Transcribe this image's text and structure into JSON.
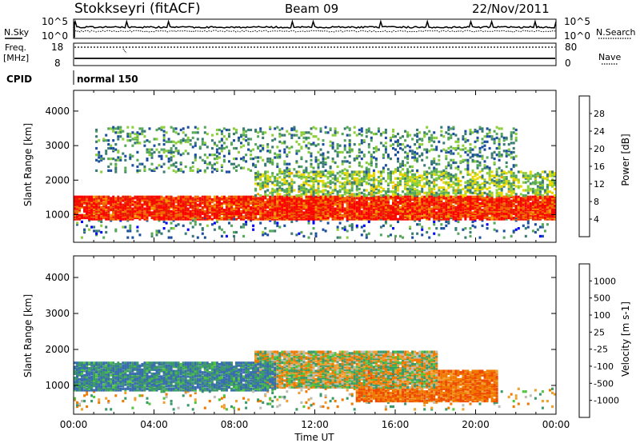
{
  "header": {
    "station": "Stokkseyri (fitACF)",
    "beam": "Beam 09",
    "date": "22/Nov/2011"
  },
  "top_panels": {
    "nsky_label": "N.Sky",
    "nsky_ticks": [
      "10^5",
      "10^0"
    ],
    "nsearch_label": "N.Search",
    "nsearch_ticks": [
      "10^5",
      "10^0"
    ],
    "freq_label": "Freq.",
    "freq_unit": "[MHz]",
    "freq_ticks": [
      "18",
      "8"
    ],
    "nave_label": "Nave",
    "nave_ticks": [
      "80",
      "0"
    ],
    "cpid_label": "CPID",
    "cpid_value": "normal 150"
  },
  "chart_data": [
    {
      "type": "heatmap",
      "title": "",
      "xlabel": "",
      "ylabel": "Slant Range [km]",
      "yticks": [
        "1000",
        "2000",
        "3000",
        "4000"
      ],
      "ylim": [
        200,
        4600
      ],
      "xlim_hours": [
        0,
        24
      ],
      "colorbar": {
        "label": "Power [dB]",
        "ticks": [
          "4",
          "8",
          "12",
          "16",
          "20",
          "24",
          "28"
        ],
        "colors": [
          "#0000ff",
          "#1c4ea0",
          "#3a7c72",
          "#55a85a",
          "#8ccf3a",
          "#e8d800",
          "#f2a200",
          "#f06a00",
          "#e81e00",
          "#ff0000"
        ]
      },
      "echo_bands": [
        {
          "name": "main",
          "t": [
            0,
            24
          ],
          "range_km": [
            800,
            1500
          ],
          "dB": 26
        },
        {
          "name": "upper",
          "t": [
            9,
            24
          ],
          "range_km": [
            1500,
            2200
          ],
          "dB": 12
        },
        {
          "name": "far",
          "t": [
            1,
            22
          ],
          "range_km": [
            2200,
            3500
          ],
          "dB": 8
        }
      ]
    },
    {
      "type": "heatmap",
      "title": "",
      "xlabel": "Time UT",
      "ylabel": "Slant Range [km]",
      "yticks": [
        "1000",
        "2000",
        "3000",
        "4000"
      ],
      "xticks": [
        "00:00",
        "04:00",
        "08:00",
        "12:00",
        "16:00",
        "20:00",
        "00:00"
      ],
      "ylim": [
        200,
        4600
      ],
      "xlim_hours": [
        0,
        24
      ],
      "colorbar": {
        "label": "Velocity [m s-1]",
        "ticks": [
          "1000",
          "500",
          "100",
          "25",
          "-25",
          "-100",
          "-500",
          "-1000"
        ],
        "colors": [
          "#1a1ad8",
          "#3a6cb0",
          "#3c9a6a",
          "#4fc63c",
          "#bdbdb4",
          "#bdbdb4",
          "#f0a030",
          "#f07a00",
          "#ee4a00",
          "#e81400"
        ]
      },
      "echo_bands": [
        {
          "name": "positive",
          "t": [
            0,
            10
          ],
          "range_km": [
            800,
            1600
          ],
          "velocity_ms": 300
        },
        {
          "name": "ground",
          "t": [
            9,
            18
          ],
          "range_km": [
            900,
            1900
          ],
          "velocity_ms": 0
        },
        {
          "name": "negative",
          "t": [
            14,
            21
          ],
          "range_km": [
            500,
            1400
          ],
          "velocity_ms": -300
        }
      ]
    }
  ]
}
